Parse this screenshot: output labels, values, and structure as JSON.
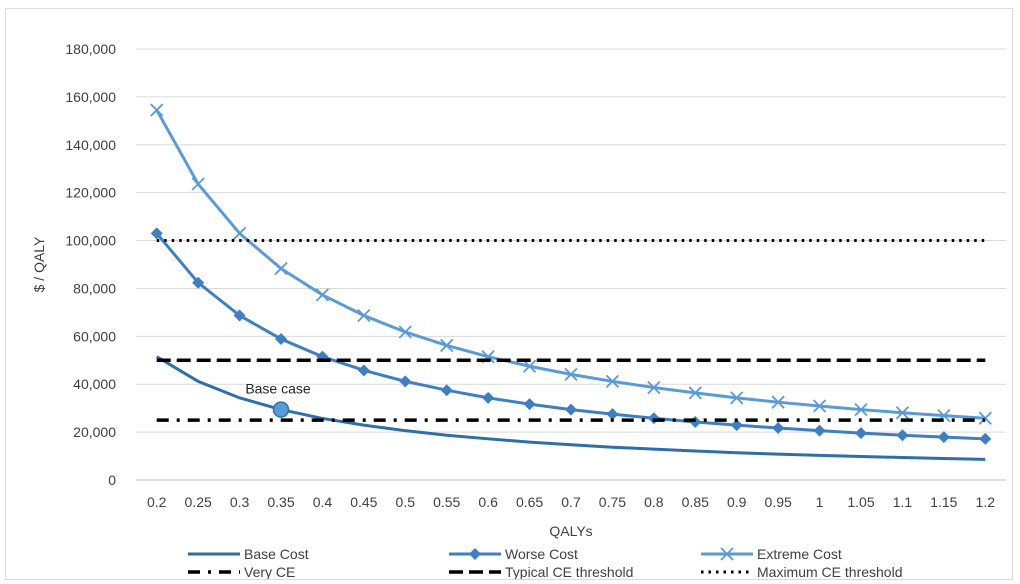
{
  "chart_data": {
    "type": "line",
    "xlabel": "QALYs",
    "ylabel": "$ / QALY",
    "x": [
      0.2,
      0.25,
      0.3,
      0.35,
      0.4,
      0.45,
      0.5,
      0.55,
      0.6,
      0.65,
      0.7,
      0.75,
      0.8,
      0.85,
      0.9,
      0.95,
      1,
      1.05,
      1.1,
      1.15,
      1.2
    ],
    "x_tick_labels": [
      "0.2",
      "0.25",
      "0.3",
      "0.35",
      "0.4",
      "0.45",
      "0.5",
      "0.55",
      "0.6",
      "0.65",
      "0.7",
      "0.75",
      "0.8",
      "0.85",
      "0.9",
      "0.95",
      "1",
      "1.05",
      "1.1",
      "1.15",
      "1.2"
    ],
    "ylim": [
      0,
      180000
    ],
    "y_ticks": [
      0,
      20000,
      40000,
      60000,
      80000,
      100000,
      120000,
      140000,
      160000,
      180000
    ],
    "y_tick_labels": [
      "0",
      "20,000",
      "40,000",
      "60,000",
      "80,000",
      "100,000",
      "120,000",
      "140,000",
      "160,000",
      "180,000"
    ],
    "grid": "horizontal",
    "legend_position": "bottom",
    "series": [
      {
        "name": "Base Cost",
        "style": "solid",
        "marker": "none",
        "color": "#2e6fa8",
        "values": [
          51500,
          41200,
          34300,
          29400,
          25700,
          22900,
          20600,
          18700,
          17200,
          15800,
          14700,
          13700,
          12900,
          12100,
          11400,
          10800,
          10300,
          9800,
          9400,
          9000,
          8600
        ]
      },
      {
        "name": "Worse Cost",
        "style": "solid",
        "marker": "diamond",
        "color": "#3f7fc0",
        "values": [
          103000,
          82400,
          68700,
          58900,
          51500,
          45800,
          41200,
          37500,
          34300,
          31700,
          29400,
          27500,
          25800,
          24200,
          22900,
          21700,
          20600,
          19600,
          18700,
          17900,
          17200
        ]
      },
      {
        "name": "Extreme Cost",
        "style": "solid",
        "marker": "x",
        "color": "#5b9bd5",
        "values": [
          154500,
          123600,
          103000,
          88300,
          77300,
          68700,
          61800,
          56200,
          51500,
          47500,
          44100,
          41200,
          38600,
          36400,
          34300,
          32500,
          30900,
          29400,
          28100,
          26900,
          25800
        ]
      },
      {
        "name": "Very CE",
        "style": "dash-dot",
        "color": "#000000",
        "constant": 25000
      },
      {
        "name": "Typical CE threshold",
        "style": "dashed",
        "color": "#000000",
        "constant": 50000
      },
      {
        "name": "Maximum CE threshold",
        "style": "dotted",
        "color": "#000000",
        "constant": 100000
      }
    ],
    "annotations": [
      {
        "text": "Base case",
        "x": 0.35,
        "y": 29400,
        "marker": "circle",
        "color": "#5b9bd5"
      }
    ]
  }
}
